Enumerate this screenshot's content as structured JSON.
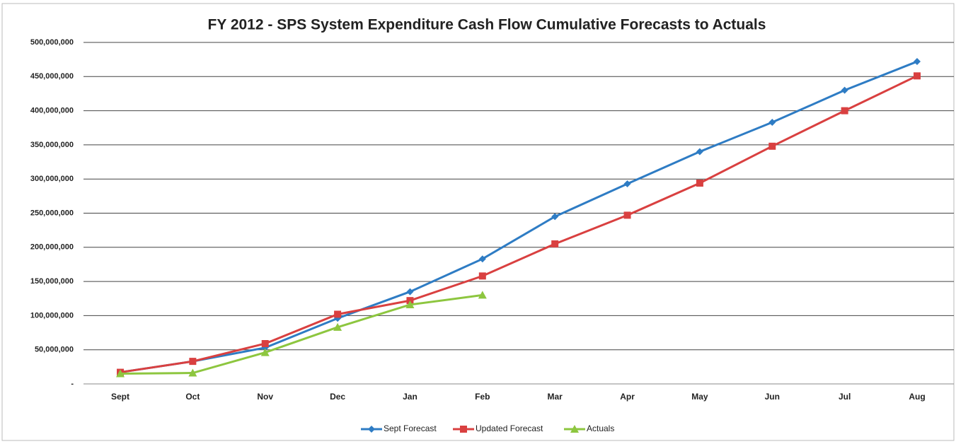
{
  "chart_data": {
    "type": "line",
    "title": "FY 2012 - SPS System  Expenditure Cash Flow Cumulative Forecasts to Actuals",
    "categories": [
      "Sept",
      "Oct",
      "Nov",
      "Dec",
      "Jan",
      "Feb",
      "Mar",
      "Apr",
      "May",
      "Jun",
      "Jul",
      "Aug"
    ],
    "series": [
      {
        "name": "Sept Forecast",
        "color": "#2e7cc4",
        "marker": "diamond",
        "values": [
          17000000,
          33000000,
          53000000,
          96000000,
          135000000,
          183000000,
          245000000,
          293000000,
          340000000,
          383000000,
          430000000,
          472000000
        ]
      },
      {
        "name": "Updated Forecast",
        "color": "#d94040",
        "marker": "square",
        "values": [
          17000000,
          33000000,
          59000000,
          102000000,
          122000000,
          158000000,
          205000000,
          247000000,
          294000000,
          348000000,
          400000000,
          451000000
        ]
      },
      {
        "name": "Actuals",
        "color": "#8dc63f",
        "marker": "triangle",
        "values": [
          15000000,
          16000000,
          46000000,
          83000000,
          116000000,
          130000000,
          null,
          null,
          null,
          null,
          null,
          null
        ]
      }
    ],
    "ylim": [
      0,
      500000000
    ],
    "yticks": [
      {
        "value": 0,
        "label": "-"
      },
      {
        "value": 50000000,
        "label": "50,000,000"
      },
      {
        "value": 100000000,
        "label": "100,000,000"
      },
      {
        "value": 150000000,
        "label": "150,000,000"
      },
      {
        "value": 200000000,
        "label": "200,000,000"
      },
      {
        "value": 250000000,
        "label": "250,000,000"
      },
      {
        "value": 300000000,
        "label": "300,000,000"
      },
      {
        "value": 350000000,
        "label": "350,000,000"
      },
      {
        "value": 400000000,
        "label": "400,000,000"
      },
      {
        "value": 450000000,
        "label": "450,000,000"
      },
      {
        "value": 500000000,
        "label": "500,000,000"
      }
    ],
    "grid": true,
    "legend": "bottom"
  }
}
